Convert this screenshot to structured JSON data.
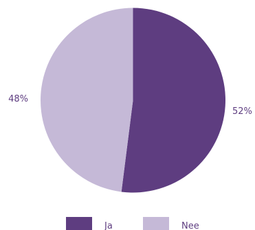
{
  "chart_data": {
    "type": "pie",
    "categories": [
      "Ja",
      "Nee"
    ],
    "values": [
      52,
      48
    ],
    "labels": [
      "52%",
      "48%"
    ],
    "colors": [
      "#5e3d80",
      "#c5b9d7"
    ],
    "legend_position": "bottom"
  }
}
